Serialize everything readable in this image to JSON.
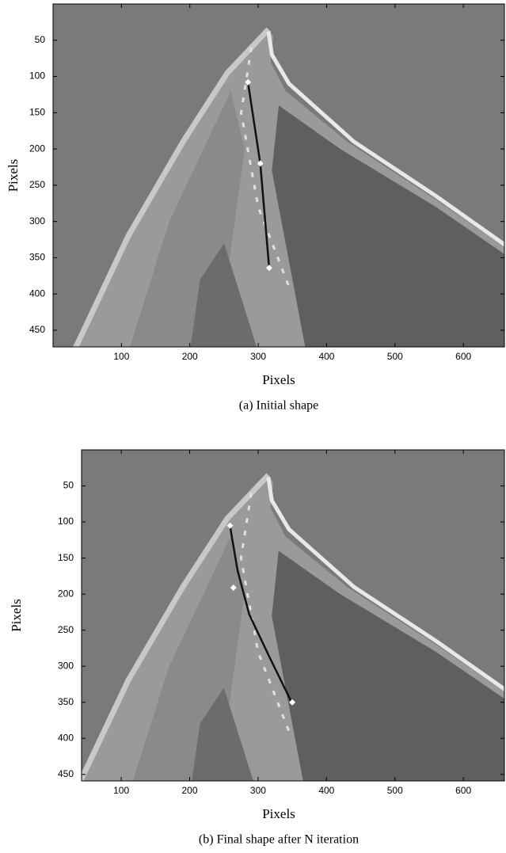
{
  "chart_data": [
    {
      "type": "image",
      "caption": "(a) Initial shape",
      "xlabel": "Pixels",
      "ylabel": "Pixels",
      "xlim": [
        0,
        660
      ],
      "ylim": [
        0,
        473
      ],
      "xticks": [
        100,
        200,
        300,
        400,
        500,
        600
      ],
      "yticks": [
        50,
        100,
        150,
        200,
        250,
        300,
        350,
        400,
        450
      ],
      "points": {
        "x": [
          285,
          303,
          316
        ],
        "y": [
          108,
          220,
          364
        ],
        "color": "#ffffff"
      },
      "curve": {
        "x": [
          285,
          303,
          316
        ],
        "y": [
          108,
          220,
          364
        ],
        "color": "#111111"
      }
    },
    {
      "type": "image",
      "caption": "(b) Final shape after N iteration",
      "xlabel": "Pixels",
      "ylabel": "Pixels",
      "xlim": [
        42,
        660
      ],
      "ylim": [
        0,
        459
      ],
      "xticks": [
        100,
        200,
        300,
        400,
        500,
        600
      ],
      "yticks": [
        50,
        100,
        150,
        200,
        250,
        300,
        350,
        400,
        450
      ],
      "points": {
        "x": [
          259,
          264,
          350
        ],
        "y": [
          105,
          191,
          350
        ],
        "color": "#ffffff"
      },
      "curve": {
        "x": [
          259,
          261,
          270,
          287,
          317,
          349
        ],
        "y": [
          105,
          117,
          167,
          228,
          288,
          350
        ],
        "color": "#111111"
      }
    }
  ]
}
